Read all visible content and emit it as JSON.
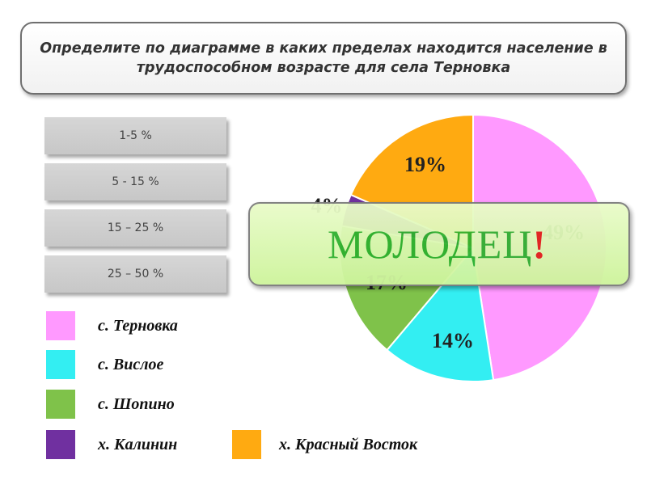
{
  "question": "Определите по диаграмме в каких пределах находится население в трудоспособном возрасте для села Терновка",
  "answer_options": [
    "1-5 %",
    "5 - 15 %",
    "15 – 25 %",
    "25 – 50 %"
  ],
  "feedback": {
    "text": "МОЛОДЕЦ",
    "mark": "!"
  },
  "chart_data": {
    "type": "pie",
    "title": "",
    "start_angle_deg": 0,
    "slices": [
      {
        "name": "с. Терновка",
        "value": 49,
        "label": "49%",
        "color": "#ff99ff"
      },
      {
        "name": "с. Вислое",
        "value": 14,
        "label": "14%",
        "color": "#33eef2"
      },
      {
        "name": "с. Шопино",
        "value": 17,
        "label": "17%",
        "color": "#7fc24a"
      },
      {
        "name": "х. Калинин",
        "value": 4,
        "label": "4%",
        "color": "#7030a0"
      },
      {
        "name": "х. Красный Восток",
        "value": 19,
        "label": "19%",
        "color": "#ffaa11"
      }
    ]
  }
}
